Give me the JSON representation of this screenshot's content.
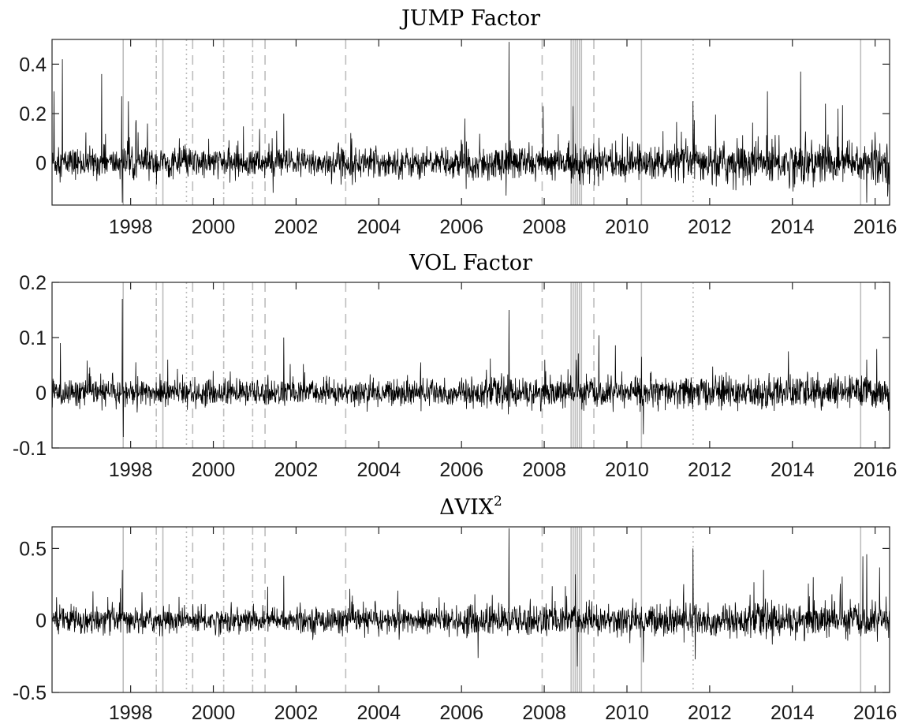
{
  "chart_data": [
    {
      "type": "line",
      "title": "JUMP Factor",
      "xlim": [
        1996.1,
        2016.35
      ],
      "ylim": [
        -0.17,
        0.5
      ],
      "yticks": [
        0,
        0.2,
        0.4
      ],
      "ytick_labels": [
        "0",
        "0.2",
        "0.4"
      ],
      "xticks": [
        1998,
        2000,
        2002,
        2004,
        2006,
        2008,
        2010,
        2012,
        2014,
        2016
      ],
      "xtick_labels": [
        "1998",
        "2000",
        "2002",
        "2004",
        "2006",
        "2008",
        "2010",
        "2012",
        "2014",
        "2016"
      ],
      "series_color": "#000000",
      "noise_sd": [
        {
          "from": 1996.1,
          "to": 2006.0,
          "sd": 0.03
        },
        {
          "from": 2006.0,
          "to": 2012.0,
          "sd": 0.035
        },
        {
          "from": 2012.0,
          "to": 2016.35,
          "sd": 0.045
        }
      ],
      "spikes": [
        {
          "x": 1996.15,
          "y": 0.29
        },
        {
          "x": 1996.35,
          "y": 0.42
        },
        {
          "x": 1997.3,
          "y": 0.36
        },
        {
          "x": 1997.78,
          "y": 0.27
        },
        {
          "x": 1997.95,
          "y": 0.25
        },
        {
          "x": 1997.8,
          "y": -0.16
        },
        {
          "x": 2001.7,
          "y": 0.2
        },
        {
          "x": 2007.15,
          "y": 0.49
        },
        {
          "x": 2008.7,
          "y": 0.23
        },
        {
          "x": 2011.6,
          "y": 0.25
        },
        {
          "x": 2013.4,
          "y": 0.29
        },
        {
          "x": 2014.2,
          "y": 0.37
        },
        {
          "x": 2014.8,
          "y": 0.24
        },
        {
          "x": 2015.1,
          "y": 0.22
        },
        {
          "x": 2015.8,
          "y": -0.16
        }
      ]
    },
    {
      "type": "line",
      "title": "VOL Factor",
      "xlim": [
        1996.1,
        2016.35
      ],
      "ylim": [
        -0.1,
        0.2
      ],
      "yticks": [
        -0.1,
        0,
        0.1,
        0.2
      ],
      "ytick_labels": [
        "-0.1",
        "0",
        "0.1",
        "0.2"
      ],
      "xticks": [
        1998,
        2000,
        2002,
        2004,
        2006,
        2008,
        2010,
        2012,
        2014,
        2016
      ],
      "xtick_labels": [
        "1998",
        "2000",
        "2002",
        "2004",
        "2006",
        "2008",
        "2010",
        "2012",
        "2014",
        "2016"
      ],
      "series_color": "#000000",
      "noise_sd": [
        {
          "from": 1996.1,
          "to": 2006.0,
          "sd": 0.012
        },
        {
          "from": 2006.0,
          "to": 2012.0,
          "sd": 0.014
        },
        {
          "from": 2012.0,
          "to": 2016.35,
          "sd": 0.015
        }
      ],
      "spikes": [
        {
          "x": 1996.3,
          "y": 0.09
        },
        {
          "x": 1997.8,
          "y": 0.17
        },
        {
          "x": 1997.82,
          "y": -0.08
        },
        {
          "x": 1998.9,
          "y": 0.06
        },
        {
          "x": 2001.7,
          "y": 0.1
        },
        {
          "x": 2007.15,
          "y": 0.15
        },
        {
          "x": 2010.4,
          "y": -0.075
        },
        {
          "x": 2010.35,
          "y": 0.065
        },
        {
          "x": 2013.9,
          "y": 0.075
        },
        {
          "x": 2015.8,
          "y": 0.06
        }
      ]
    },
    {
      "type": "line",
      "title": "ΔVIX",
      "title_superscript": "2",
      "xlim": [
        1996.1,
        2016.35
      ],
      "ylim": [
        -0.5,
        0.65
      ],
      "yticks": [
        -0.5,
        0,
        0.5
      ],
      "ytick_labels": [
        "-0.5",
        "0",
        "0.5"
      ],
      "xticks": [
        1998,
        2000,
        2002,
        2004,
        2006,
        2008,
        2010,
        2012,
        2014,
        2016
      ],
      "xtick_labels": [
        "1998",
        "2000",
        "2002",
        "2004",
        "2006",
        "2008",
        "2010",
        "2012",
        "2014",
        "2016"
      ],
      "series_color": "#000000",
      "noise_sd": [
        {
          "from": 1996.1,
          "to": 2006.0,
          "sd": 0.045
        },
        {
          "from": 2006.0,
          "to": 2012.0,
          "sd": 0.055
        },
        {
          "from": 2012.0,
          "to": 2016.35,
          "sd": 0.06
        }
      ],
      "spikes": [
        {
          "x": 1997.8,
          "y": 0.35
        },
        {
          "x": 2001.7,
          "y": 0.31
        },
        {
          "x": 2006.4,
          "y": -0.26
        },
        {
          "x": 2007.15,
          "y": 0.64
        },
        {
          "x": 2008.75,
          "y": 0.32
        },
        {
          "x": 2008.8,
          "y": -0.32
        },
        {
          "x": 2010.4,
          "y": -0.29
        },
        {
          "x": 2011.6,
          "y": 0.5
        },
        {
          "x": 2011.65,
          "y": -0.27
        },
        {
          "x": 2013.3,
          "y": 0.35
        },
        {
          "x": 2015.8,
          "y": 0.46
        },
        {
          "x": 2014.5,
          "y": 0.3
        }
      ]
    }
  ],
  "event_lines": [
    {
      "x": 1997.82,
      "style": "solid"
    },
    {
      "x": 1998.62,
      "style": "dashdot"
    },
    {
      "x": 1998.78,
      "style": "solid"
    },
    {
      "x": 1999.35,
      "style": "dotted"
    },
    {
      "x": 1999.5,
      "style": "dashed"
    },
    {
      "x": 2000.25,
      "style": "dashdot"
    },
    {
      "x": 2000.95,
      "style": "dashdot"
    },
    {
      "x": 2001.25,
      "style": "dashed"
    },
    {
      "x": 2003.2,
      "style": "dashed"
    },
    {
      "x": 2007.95,
      "style": "dashed"
    },
    {
      "x": 2008.65,
      "style": "solid"
    },
    {
      "x": 2008.7,
      "style": "solid"
    },
    {
      "x": 2008.75,
      "style": "solid"
    },
    {
      "x": 2008.8,
      "style": "solid"
    },
    {
      "x": 2008.85,
      "style": "solid"
    },
    {
      "x": 2008.9,
      "style": "solid"
    },
    {
      "x": 2009.2,
      "style": "dashed"
    },
    {
      "x": 2010.35,
      "style": "solid"
    },
    {
      "x": 2011.6,
      "style": "dotted"
    },
    {
      "x": 2015.65,
      "style": "solid"
    }
  ],
  "event_line_color": "#bdbdbd"
}
